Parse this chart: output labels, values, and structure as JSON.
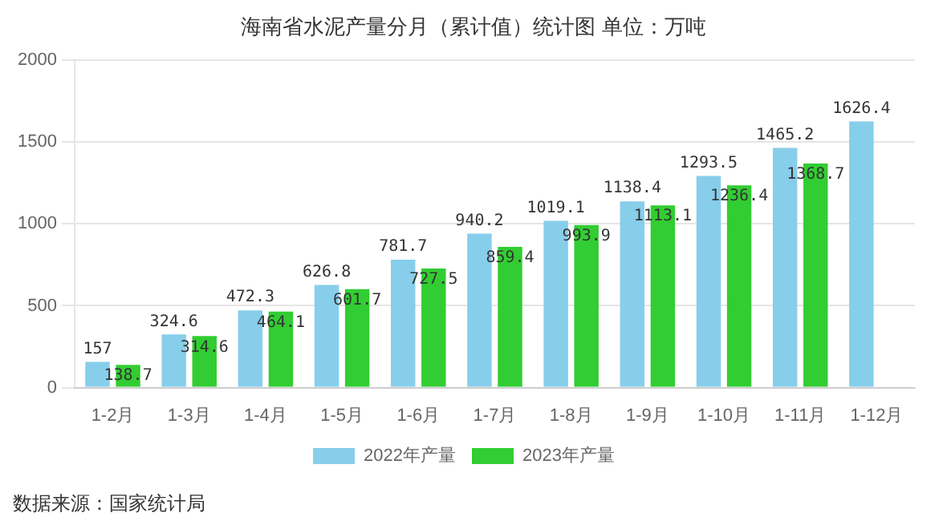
{
  "chart_data": {
    "type": "bar",
    "title": "海南省水泥产量分月（累计值）统计图 单位：万吨",
    "categories": [
      "1-2月",
      "1-3月",
      "1-4月",
      "1-5月",
      "1-6月",
      "1-7月",
      "1-8月",
      "1-9月",
      "1-10月",
      "1-11月",
      "1-12月"
    ],
    "series": [
      {
        "name": "2022年产量",
        "color": "#87ceeb",
        "values": [
          157,
          324.6,
          472.3,
          626.8,
          781.7,
          940.2,
          1019.1,
          1138.4,
          1293.5,
          1465.2,
          1626.4
        ]
      },
      {
        "name": "2023年产量",
        "color": "#32cd32",
        "values": [
          138.7,
          314.6,
          464.1,
          601.7,
          727.5,
          859.4,
          993.9,
          1113.1,
          1236.4,
          1368.7,
          null
        ]
      }
    ],
    "ylim": [
      0,
      2000
    ],
    "yticks": [
      0,
      500,
      1000,
      1500,
      2000
    ],
    "grid": "y",
    "legend": "bottom",
    "data_labels": true,
    "annotations": [
      "数据来源：国家统计局"
    ]
  }
}
